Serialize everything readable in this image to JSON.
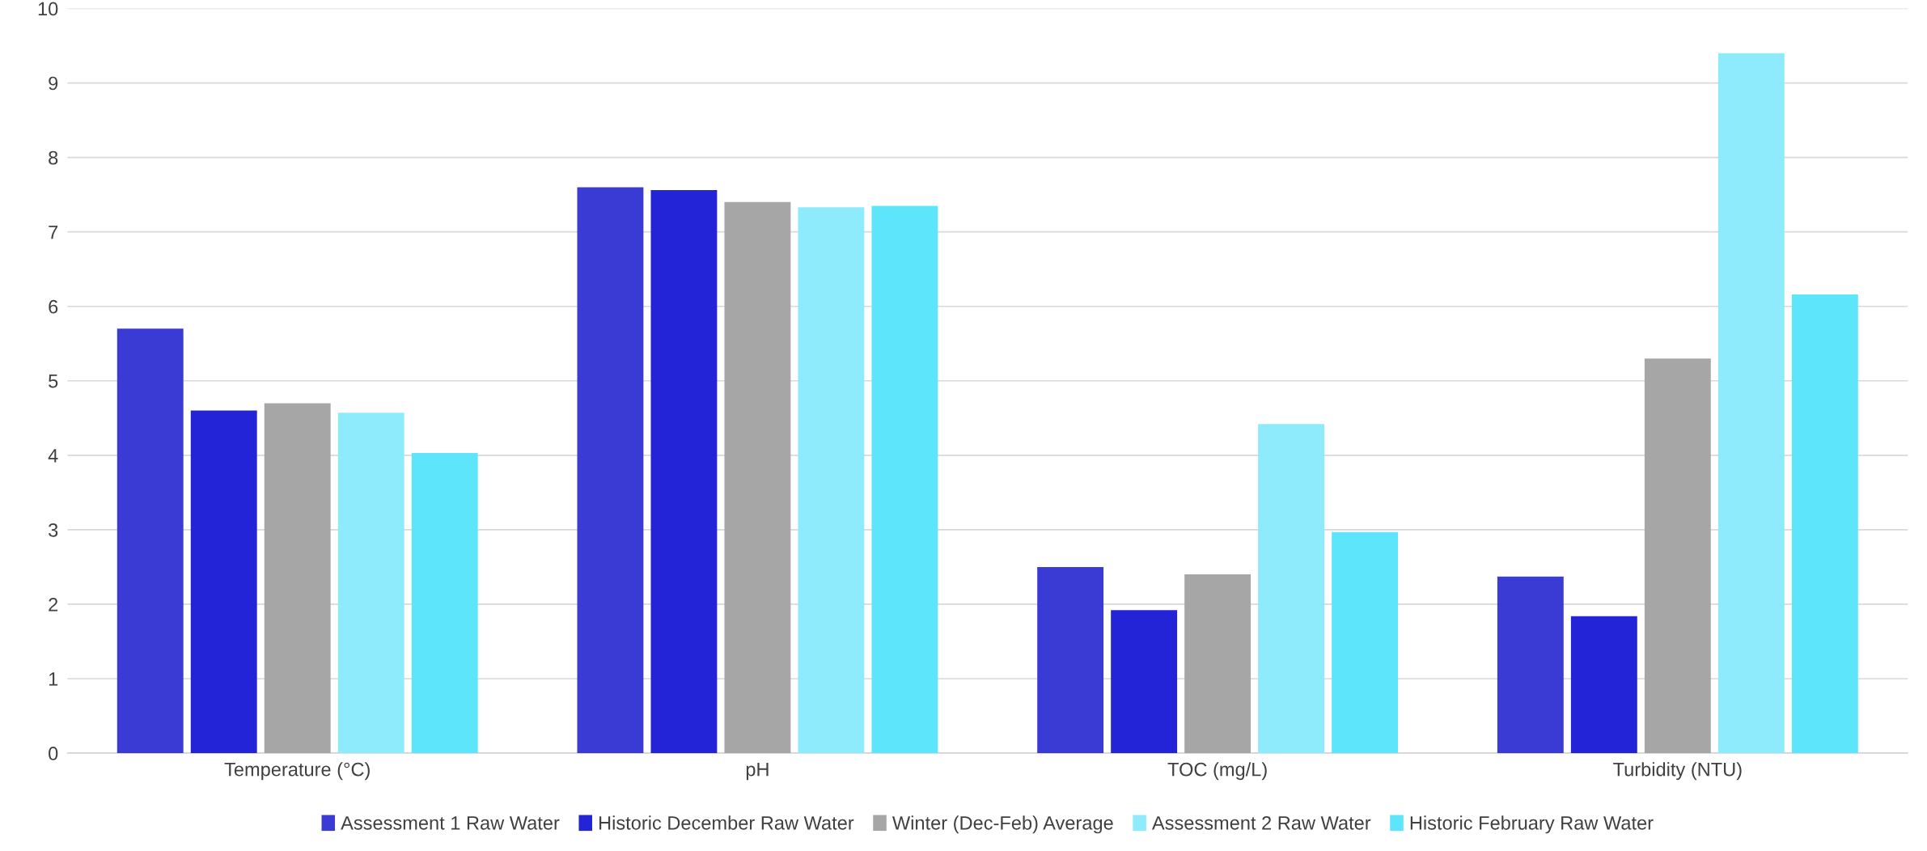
{
  "chart_data": {
    "type": "bar",
    "categories": [
      "Temperature (°C)",
      "pH",
      "TOC (mg/L)",
      "Turbidity (NTU)"
    ],
    "series": [
      {
        "name": "Assessment 1 Raw Water",
        "color": "#3a3ad4",
        "values": [
          5.7,
          7.6,
          2.5,
          2.37
        ]
      },
      {
        "name": "Historic December Raw Water",
        "color": "#2323d8",
        "values": [
          4.6,
          7.56,
          1.92,
          1.84
        ]
      },
      {
        "name": "Winter (Dec-Feb) Average",
        "color": "#a6a6a6",
        "values": [
          4.7,
          7.4,
          2.4,
          5.3
        ]
      },
      {
        "name": "Assessment 2 Raw Water",
        "color": "#8eebfb",
        "values": [
          4.57,
          7.33,
          4.42,
          9.4
        ]
      },
      {
        "name": "Historic February Raw Water",
        "color": "#5ce5fb",
        "values": [
          4.03,
          7.35,
          2.97,
          6.16
        ]
      }
    ],
    "ylim": [
      0,
      10
    ],
    "yticks": [
      0,
      1,
      2,
      3,
      4,
      5,
      6,
      7,
      8,
      9,
      10
    ],
    "grid": "y",
    "legend": "bottom"
  }
}
